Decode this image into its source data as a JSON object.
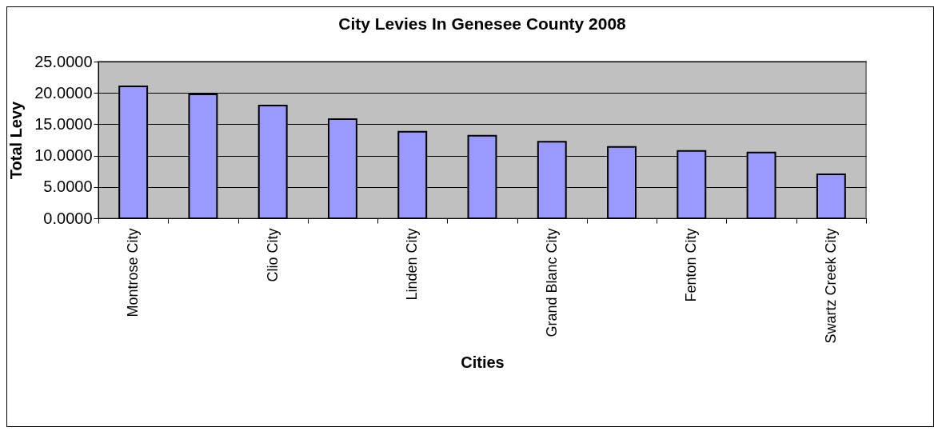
{
  "chart_data": {
    "type": "bar",
    "title": "City Levies In Genesee County 2008",
    "xlabel": "Cities",
    "ylabel": "Total Levy",
    "categories": [
      "Montrose City",
      null,
      "Clio City",
      null,
      "Linden City",
      null,
      "Grand Blanc City",
      null,
      "Fenton City",
      null,
      "Swartz Creek City"
    ],
    "values": [
      21.05,
      19.77,
      17.98,
      15.82,
      13.82,
      13.18,
      12.2,
      11.39,
      10.76,
      10.5,
      7.02
    ],
    "color": "#9999ff",
    "ylim": [
      0,
      25
    ],
    "yticks": [
      {
        "value": 0,
        "label": "0.0000"
      },
      {
        "value": 5,
        "label": "5.0000"
      },
      {
        "value": 10,
        "label": "10.0000"
      },
      {
        "value": 15,
        "label": "15.0000"
      },
      {
        "value": 20,
        "label": "20.0000"
      },
      {
        "value": 25,
        "label": "25.0000"
      }
    ],
    "grid": "y"
  }
}
